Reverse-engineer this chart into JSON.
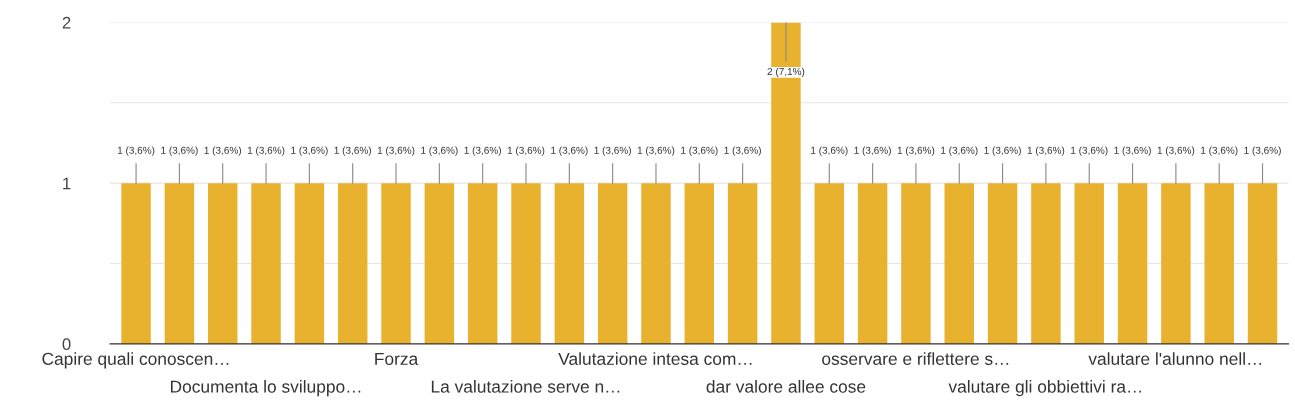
{
  "chart_data": {
    "type": "bar",
    "categories": [
      "Capire quali conoscen…",
      null,
      null,
      "Documenta lo sviluppo…",
      null,
      null,
      "Forza",
      null,
      null,
      "La valutazione serve n…",
      null,
      null,
      "Valutazione intesa com…",
      null,
      null,
      "dar valore allee cose",
      null,
      null,
      "osservare e riflettere s…",
      null,
      null,
      "valutare gli obbiettivi ra…",
      null,
      null,
      "valutare l'alunno nell…",
      null,
      null
    ],
    "values": [
      1,
      1,
      1,
      1,
      1,
      1,
      1,
      1,
      1,
      1,
      1,
      1,
      1,
      1,
      1,
      2,
      1,
      1,
      1,
      1,
      1,
      1,
      1,
      1,
      1,
      1,
      1
    ],
    "value_labels": [
      "1 (3,6%)",
      "1 (3,6%)",
      "1 (3,6%)",
      "1 (3,6%)",
      "1 (3,6%)",
      "1 (3,6%)",
      "1 (3,6%)",
      "1 (3,6%)",
      "1 (3,6%)",
      "1 (3,6%)",
      "1 (3,6%)",
      "1 (3,6%)",
      "1 (3,6%)",
      "1 (3,6%)",
      "1 (3,6%)",
      "2 (7,1%)",
      "1 (3,6%)",
      "1 (3,6%)",
      "1 (3,6%)",
      "1 (3,6%)",
      "1 (3,6%)",
      "1 (3,6%)",
      "1 (3,6%)",
      "1 (3,6%)",
      "1 (3,6%)",
      "1 (3,6%)",
      "1 (3,6%)"
    ],
    "color": "#e8b22e",
    "ylim": [
      0,
      2
    ],
    "yticks": [
      0,
      {
        "value": 0.5,
        "label": null
      },
      1,
      {
        "value": 1.5,
        "label": null
      },
      2
    ],
    "grid": "y"
  }
}
